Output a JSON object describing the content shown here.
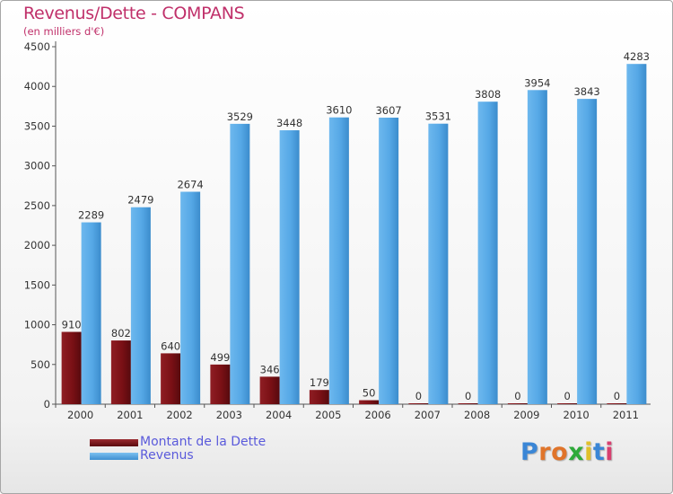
{
  "title": "Revenus/Dette - COMPANS",
  "subtitle": "(en milliers d'€)",
  "colors": {
    "title": "#c0306a",
    "dette": "#7a1015",
    "revenus": "#56a8e6",
    "legend_text": "#5a5adb",
    "axis": "#333333",
    "grid": "#d0d0d0"
  },
  "legend": {
    "dette_label": "Montant de la Dette",
    "revenus_label": "Revenus"
  },
  "logo": {
    "text": "Proxiti"
  },
  "chart_data": {
    "type": "bar",
    "title": "Revenus/Dette - COMPANS",
    "subtitle": "(en milliers d'€)",
    "xlabel": "",
    "ylabel": "",
    "ylim": [
      0,
      4500
    ],
    "yticks": [
      0,
      500,
      1000,
      1500,
      2000,
      2500,
      3000,
      3500,
      4000,
      4500
    ],
    "grid": false,
    "legend_position": "bottom-left",
    "categories": [
      "2000",
      "2001",
      "2002",
      "2003",
      "2004",
      "2005",
      "2006",
      "2007",
      "2008",
      "2009",
      "2010",
      "2011"
    ],
    "series": [
      {
        "name": "Montant de la Dette",
        "values": [
          910,
          802,
          640,
          499,
          346,
          179,
          50,
          0,
          0,
          0,
          0,
          0
        ]
      },
      {
        "name": "Revenus",
        "values": [
          2289,
          2479,
          2674,
          3529,
          3448,
          3610,
          3607,
          3531,
          3808,
          3954,
          3843,
          4283
        ]
      }
    ]
  }
}
